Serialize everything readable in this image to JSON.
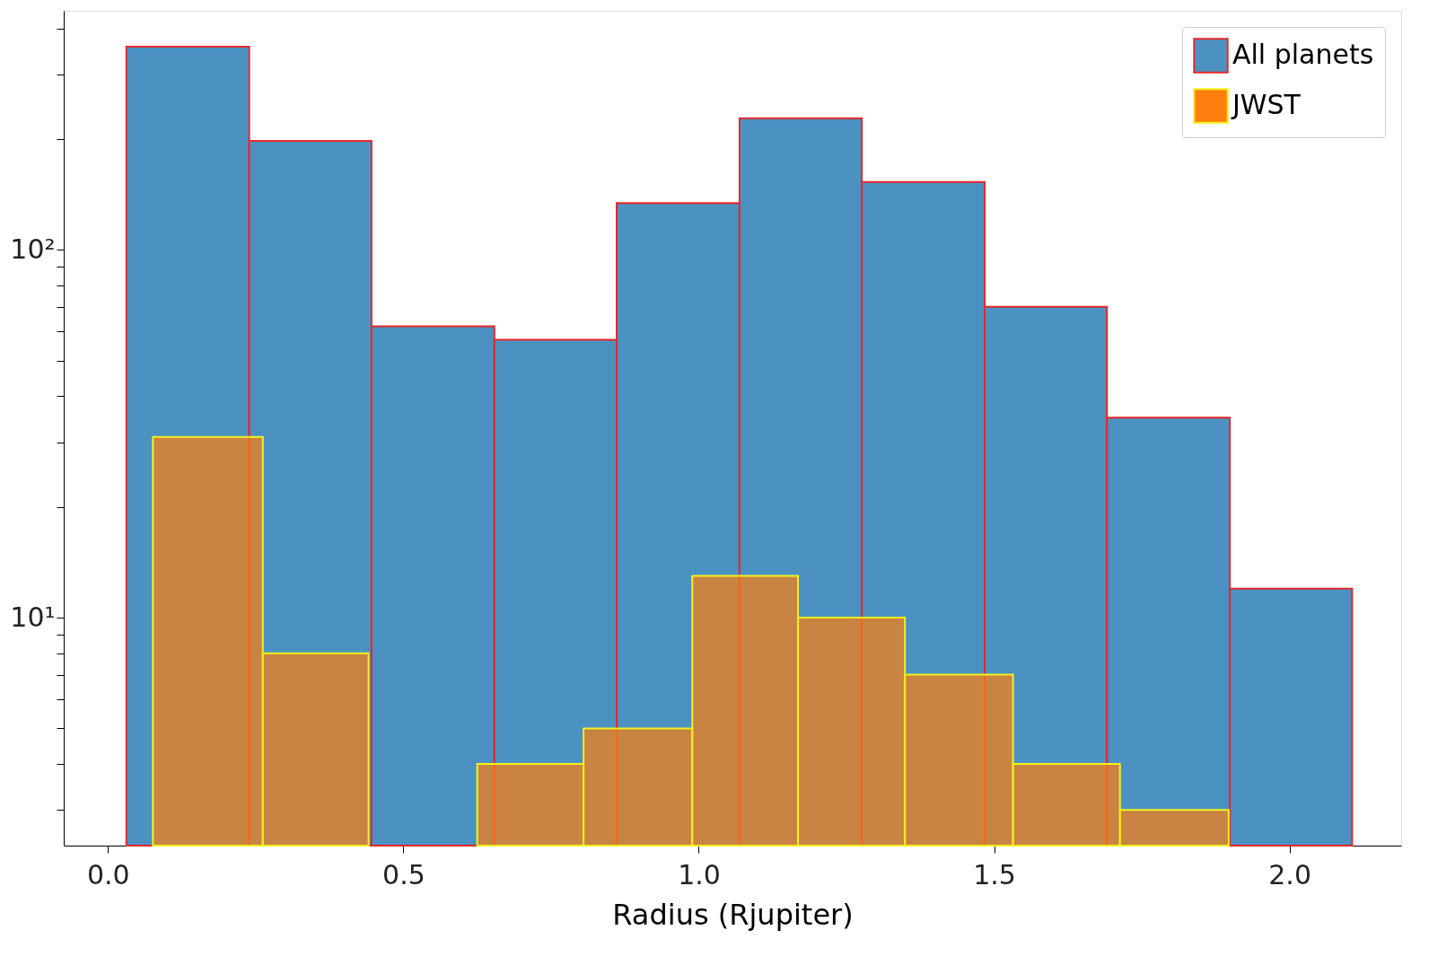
{
  "chart_data": {
    "type": "histogram",
    "xlabel": "Radius (Rjupiter)",
    "xlim": [
      -0.075,
      2.189
    ],
    "xticks": [
      {
        "value": 0,
        "label": "0.0"
      },
      0.5,
      {
        "value": 1,
        "label": "1.0"
      },
      1.5,
      {
        "value": 2,
        "label": "2.0"
      }
    ],
    "log": true,
    "ylim": [
      2.4,
      447
    ],
    "yticks": [
      {
        "value": 3,
        "label": null
      },
      {
        "value": 4,
        "label": null
      },
      {
        "value": 5,
        "label": null
      },
      {
        "value": 6,
        "label": null
      },
      {
        "value": 7,
        "label": null
      },
      {
        "value": 8,
        "label": null
      },
      {
        "value": 9,
        "label": null
      },
      {
        "value": 10,
        "label": "10¹"
      },
      {
        "value": 20,
        "label": null
      },
      {
        "value": 30,
        "label": null
      },
      {
        "value": 40,
        "label": null
      },
      {
        "value": 50,
        "label": null
      },
      {
        "value": 60,
        "label": null
      },
      {
        "value": 70,
        "label": null
      },
      {
        "value": 80,
        "label": null
      },
      {
        "value": 90,
        "label": null
      },
      {
        "value": 100,
        "label": "10²"
      },
      {
        "value": 200,
        "label": null
      },
      {
        "value": 300,
        "label": null
      },
      {
        "value": 400,
        "label": null
      }
    ],
    "grid": false,
    "legend": "top right",
    "bins": [
      0.031,
      0.239,
      0.446,
      0.654,
      0.861,
      1.069,
      1.276,
      1.484,
      1.691,
      1.899,
      2.106
    ],
    "series": [
      {
        "name": "All planets",
        "color": "#4b92c3",
        "values": [
          357,
          198,
          62,
          57,
          134,
          228,
          153,
          70,
          35,
          12
        ]
      },
      {
        "name": "JWST",
        "color": "#ff7f0e",
        "bins": [
          0.076,
          0.262,
          0.441,
          0.625,
          0.805,
          0.989,
          1.168,
          1.349,
          1.532,
          1.713,
          1.897
        ],
        "values": [
          31,
          8,
          null,
          4,
          5,
          13,
          10,
          7,
          4,
          3
        ]
      }
    ]
  }
}
